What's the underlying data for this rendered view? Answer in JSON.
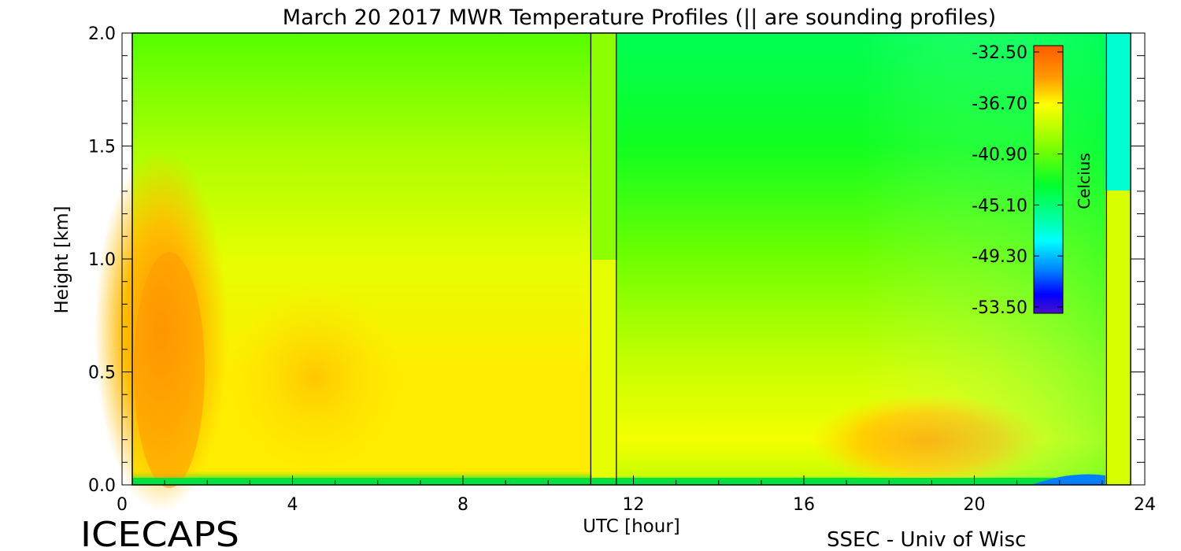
{
  "chart_data": {
    "type": "heatmap",
    "title": "March 20 2017 MWR Temperature Profiles (|| are sounding profiles)",
    "xlabel": "UTC [hour]",
    "ylabel": "Height [km]",
    "xlim": [
      0,
      24
    ],
    "ylim": [
      0,
      2
    ],
    "x_ticks": [
      "0",
      "4",
      "8",
      "12",
      "16",
      "20",
      "24"
    ],
    "y_ticks": [
      "0.0",
      "0.5",
      "1.0",
      "1.5",
      "2.0"
    ],
    "colorbar": {
      "label": "Celcius",
      "ticks": [
        "-32.50",
        "-36.70",
        "-40.90",
        "-45.10",
        "-49.30",
        "-53.50"
      ],
      "vmin": -53.5,
      "vmax": -32.5
    },
    "sounding_times": [
      11.0,
      11.6,
      23.1
    ],
    "data_gaps": [
      [
        11.0,
        11.6
      ]
    ],
    "grid": false,
    "legend": "colorbar top-right inside plot"
  },
  "footer": {
    "left": "ICECAPS",
    "right": "SSEC - Univ of Wisc"
  }
}
